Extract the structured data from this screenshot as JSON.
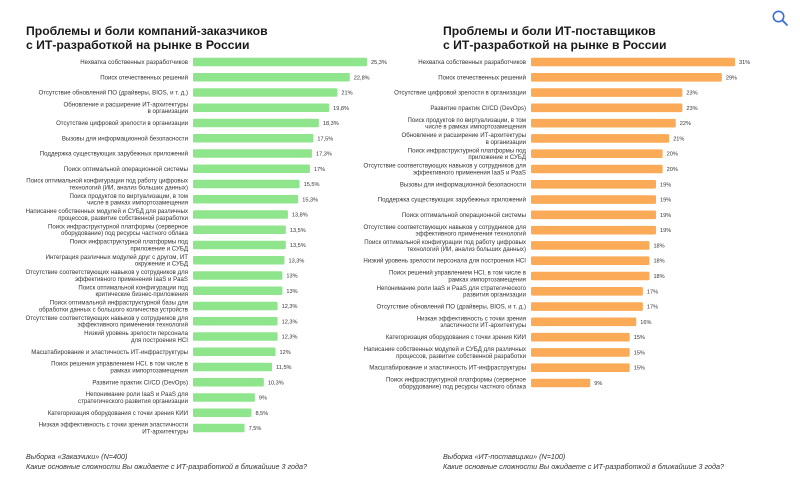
{
  "colors": {
    "left_bar": "#8ee58c",
    "right_bar": "#fbaa57",
    "text": "#333333",
    "icon": "#3b6fd6"
  },
  "search": {
    "icon": "search-icon"
  },
  "chart_data": [
    {
      "type": "bar",
      "orientation": "horizontal",
      "title_lines": [
        "Проблемы и боли компаний-заказчиков",
        "с ИТ-разработкой на рынке в России"
      ],
      "sample": "Выборка «Заказчики» (N=400)",
      "question": "Какие основные сложности Вы ожидаете с ИТ-разработкой в ближайшие 3 года?",
      "value_suffix": "%",
      "xlim": [
        0,
        25.3
      ],
      "categories": [
        [
          "Нехватка собственных разработчиков"
        ],
        [
          "Поиск отечественных решений"
        ],
        [
          "Отсутствие обновлений ПО (драйверы, BIOS, и т. д.)"
        ],
        [
          "Обновление и расширение ИТ-архитектуры",
          "в организации"
        ],
        [
          "Отсутствие цифровой зрелости в организации"
        ],
        [
          "Вызовы для информационной безопасности"
        ],
        [
          "Поддержка существующих зарубежных приложений"
        ],
        [
          "Поиск оптимальной операционной системы"
        ],
        [
          "Поиск оптимальной конфигурации под работу цифровых",
          "технологий (ИИ, анализ больших данных)"
        ],
        [
          "Поиск продуктов по виртуализации, в том",
          "числе в рамках импортозамещения"
        ],
        [
          "Написание собственных модулей и СУБД для различных",
          "процессов, развитие собственной разработки"
        ],
        [
          "Поиск инфраструктурной платформы (серверное",
          "оборудование) под ресурсы частного облака"
        ],
        [
          "Поиск инфраструктурной платформы под",
          "приложение и СУБД"
        ],
        [
          "Интеграция различных модулей друг с другом, ИТ",
          "окружение и СУБД"
        ],
        [
          "Отсутствие соответствующих навыков у сотрудников для",
          "эффективного применения IaaS и PaaS"
        ],
        [
          "Поиск оптимальной конфигурации под",
          "критические бизнес-приложения"
        ],
        [
          "Поиск оптимальной инфраструктурной базы для",
          "обработки данных с большого количества устройств"
        ],
        [
          "Отсутствие соответствующих навыков у сотрудников для",
          "эффективного применения технологий"
        ],
        [
          "Низкий уровень зрелости персонала",
          "для построения HCI"
        ],
        [
          "Масштабирование и эластичность ИТ-инфраструктуры"
        ],
        [
          "Поиск решения управлением HCI, в том числе в",
          "рамках импортозамещения"
        ],
        [
          "Развитие практик CI/CD (DevOps)"
        ],
        [
          "Непонимание роли IaaS и PaaS для",
          "стратегического развития организации"
        ],
        [
          "Категоризация оборудования с точки зрения КИИ"
        ],
        [
          "Низкая эффективность с точки зрения эластичности",
          "ИТ-архитектуры"
        ]
      ],
      "values": [
        25.3,
        22.8,
        21,
        19.8,
        18.3,
        17.5,
        17.3,
        17,
        15.5,
        15.3,
        13.8,
        13.5,
        13.5,
        13.3,
        13,
        13,
        12.3,
        12.3,
        12.3,
        12,
        11.5,
        10.3,
        9,
        8.5,
        7.5
      ],
      "value_labels": [
        "25,3%",
        "22,8%",
        "21%",
        "19,8%",
        "18,3%",
        "17,5%",
        "17,3%",
        "17%",
        "15,5%",
        "15,3%",
        "13,8%",
        "13,5%",
        "13,5%",
        "13,3%",
        "13%",
        "13%",
        "12,3%",
        "12,3%",
        "12,3%",
        "12%",
        "11,5%",
        "10,3%",
        "9%",
        "8,5%",
        "7,5%"
      ]
    },
    {
      "type": "bar",
      "orientation": "horizontal",
      "title_lines": [
        "Проблемы и боли ИТ-поставщиков",
        "с ИТ-разработкой на рынке в России"
      ],
      "sample": "Выборка «ИТ-поставщики» (N=100)",
      "question": "Какие основные сложности Вы ожидаете с ИТ-разработкой в ближайшие 3 года?",
      "value_suffix": "%",
      "xlim": [
        0,
        31
      ],
      "categories": [
        [
          "Нехватка собственных разработчиков"
        ],
        [
          "Поиск отечественных решений"
        ],
        [
          "Отсутствие цифровой зрелости в организации"
        ],
        [
          "Развитие практик CI/CD (DevOps)"
        ],
        [
          "Поиск продуктов по виртуализации, в том",
          "числе в рамках импортозамещения"
        ],
        [
          "Обновление и расширение ИТ-архитектуры",
          "в организации"
        ],
        [
          "Поиск инфраструктурной платформы под",
          "приложение и СУБД"
        ],
        [
          "Отсутствие соответствующих навыков у сотрудников для",
          "эффективного применения IaaS и PaaS"
        ],
        [
          "Вызовы для информационной безопасности"
        ],
        [
          "Поддержка существующих зарубежных приложений"
        ],
        [
          "Поиск оптимальной операционной системы"
        ],
        [
          "Отсутствие соответствующих навыков у сотрудников для",
          "эффективного применения технологий"
        ],
        [
          "Поиск оптимальной конфигурации под работу цифровых",
          "технологий (ИИ, анализ больших данных)"
        ],
        [
          "Низкий уровень зрелости персонала для построения HCI"
        ],
        [
          "Поиск решений управлением HCI, в том числе в",
          "рамках импортозамещения"
        ],
        [
          "Непонимание роли IaaS и PaaS для стратегического",
          "развития организации"
        ],
        [
          "Отсутствие обновлений ПО (драйверы, BIOS, и т. д.)"
        ],
        [
          "Низкая эффективность с точки зрения",
          "эластичности ИТ-архитектуры"
        ],
        [
          "Категоризация оборудования с точки зрения КИИ"
        ],
        [
          "Написание собственных модулей и СУБД для различных",
          "процессов, развитие собственной разработки"
        ],
        [
          "Масштабирование и эластичность ИТ-инфраструктуры"
        ],
        [
          "Поиск инфраструктурной платформы (серверное",
          "оборудование) под ресурсы частного облака"
        ]
      ],
      "values": [
        31,
        29,
        23,
        23,
        22,
        21,
        20,
        20,
        19,
        19,
        19,
        19,
        18,
        18,
        18,
        17,
        17,
        16,
        15,
        15,
        15,
        9
      ],
      "value_labels": [
        "31%",
        "29%",
        "23%",
        "23%",
        "22%",
        "21%",
        "20%",
        "20%",
        "19%",
        "19%",
        "19%",
        "19%",
        "18%",
        "18%",
        "18%",
        "17%",
        "17%",
        "16%",
        "15%",
        "15%",
        "15%",
        "9%"
      ]
    }
  ]
}
